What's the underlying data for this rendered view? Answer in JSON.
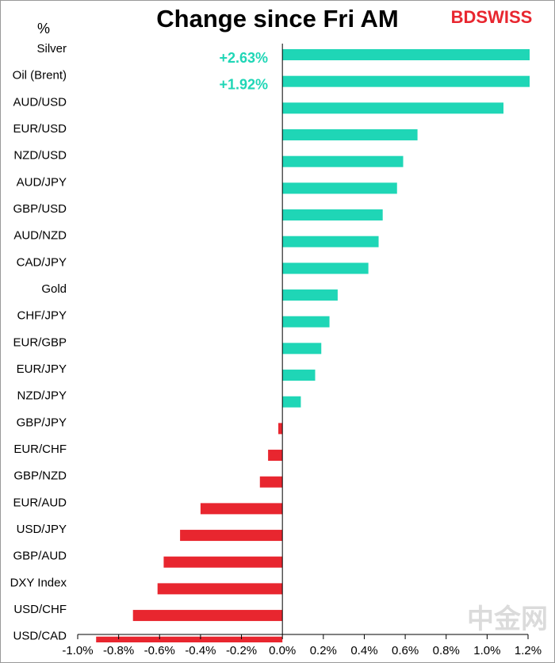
{
  "chart_data": {
    "type": "hbar",
    "title": "Change since Fri AM",
    "y_label": "%",
    "logo": "BDSWISS",
    "watermark": "中金网",
    "categories": [
      "Silver",
      "Oil (Brent)",
      "AUD/USD",
      "EUR/USD",
      "NZD/USD",
      "AUD/JPY",
      "GBP/USD",
      "AUD/NZD",
      "CAD/JPY",
      "Gold",
      "CHF/JPY",
      "EUR/GBP",
      "EUR/JPY",
      "NZD/JPY",
      "GBP/JPY",
      "EUR/CHF",
      "GBP/NZD",
      "EUR/AUD",
      "USD/JPY",
      "GBP/AUD",
      "DXY Index",
      "USD/CHF",
      "USD/CAD"
    ],
    "values": [
      2.63,
      1.92,
      1.08,
      0.66,
      0.59,
      0.56,
      0.49,
      0.47,
      0.42,
      0.27,
      0.23,
      0.19,
      0.16,
      0.09,
      -0.02,
      -0.07,
      -0.11,
      -0.4,
      -0.5,
      -0.58,
      -0.61,
      -0.73,
      -0.91
    ],
    "value_labels": [
      "+2.63%",
      "+1.92%",
      null,
      null,
      null,
      null,
      null,
      null,
      null,
      null,
      null,
      null,
      null,
      null,
      null,
      null,
      null,
      null,
      null,
      null,
      null,
      null,
      null
    ],
    "colors": {
      "positive": "#1fd6b6",
      "negative": "#e8262f"
    },
    "xlim": [
      -1.0,
      1.2
    ],
    "xticks": [
      {
        "value": -1.0,
        "label": "-1.0%"
      },
      {
        "value": -0.8,
        "label": "-0.8%"
      },
      {
        "value": -0.6,
        "label": "-0.6%"
      },
      {
        "value": -0.4,
        "label": "-0.4%"
      },
      {
        "value": -0.2,
        "label": "-0.2%"
      },
      {
        "value": 0.0,
        "label": "0.0%"
      },
      {
        "value": 0.2,
        "label": "0.2%"
      },
      {
        "value": 0.4,
        "label": "0.4%"
      },
      {
        "value": 0.6,
        "label": "0.6%"
      },
      {
        "value": 0.8,
        "label": "0.8%"
      },
      {
        "value": 1.0,
        "label": "1.0%"
      },
      {
        "value": 1.2,
        "label": "1.2%"
      }
    ]
  }
}
